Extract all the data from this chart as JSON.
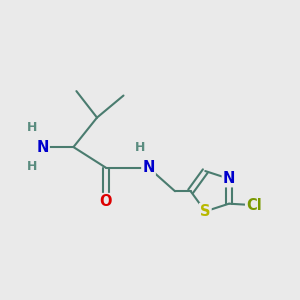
{
  "bg_color": "#eaeaea",
  "bond_color": "#4a7c6f",
  "bond_width": 1.5,
  "atom_colors": {
    "N": "#0000cc",
    "O": "#dd0000",
    "S": "#b8b800",
    "Cl": "#7a9900",
    "C": "#4a7c6f",
    "H": "#5a8c7f"
  },
  "font_size": 10.5,
  "font_size_small": 9.0
}
